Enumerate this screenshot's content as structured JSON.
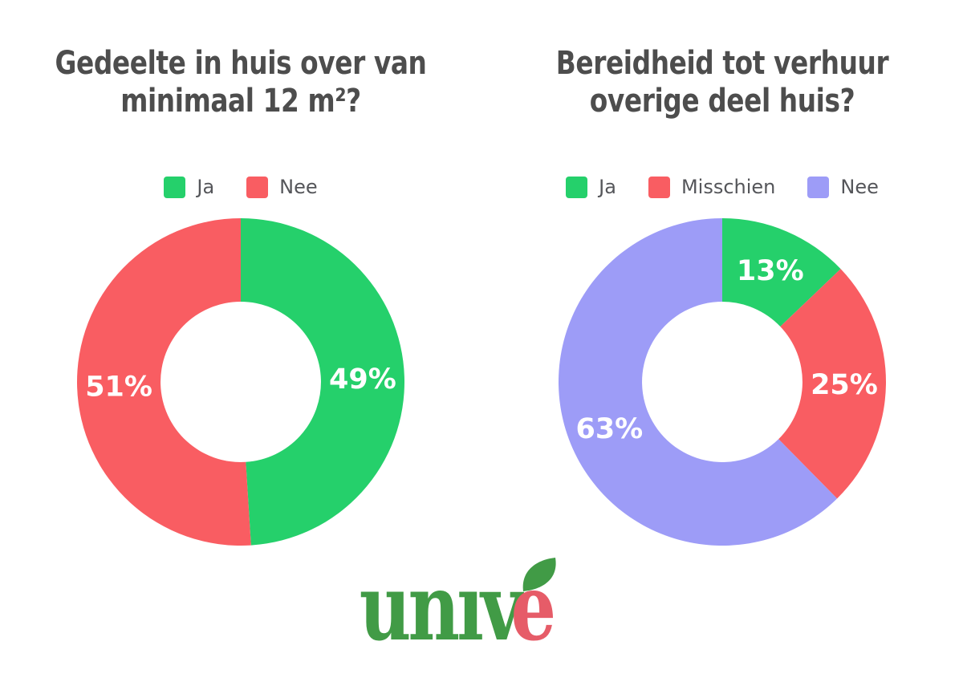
{
  "page": {
    "background": "#ffffff"
  },
  "styles": {
    "title_color": "#4d4d4d",
    "legend_text_color": "#55565a",
    "slice_label_color": "#ffffff"
  },
  "chart_data": [
    {
      "type": "pie",
      "donut": true,
      "title": "Gedeelte in huis over van minimaal 12 m²?",
      "title_lines": [
        "Gedeelte in huis over van",
        "minimaal 12 m²?"
      ],
      "labels": [
        "Ja",
        "Nee"
      ],
      "values": [
        49,
        51
      ],
      "data_labels": [
        "49%",
        "51%"
      ],
      "colors": [
        "#25d06b",
        "#f95d62"
      ],
      "start_angle_deg": 0,
      "direction": "clockwise",
      "legend_position": "top",
      "inner_radius_ratio": 0.49
    },
    {
      "type": "pie",
      "donut": true,
      "title": "Bereidheid tot verhuur overige deel huis?",
      "title_lines": [
        "Bereidheid tot verhuur",
        "overige deel huis?"
      ],
      "labels": [
        "Ja",
        "Misschien",
        "Nee"
      ],
      "values": [
        13,
        25,
        63
      ],
      "data_labels": [
        "13%",
        "25%",
        "63%"
      ],
      "colors": [
        "#25d06b",
        "#f95d62",
        "#9d9cf7"
      ],
      "start_angle_deg": 0,
      "direction": "clockwise",
      "legend_position": "top",
      "inner_radius_ratio": 0.49
    }
  ],
  "logo": {
    "brand": "univé",
    "green_part": "unıv",
    "red_part": "e",
    "green_color": "#419b46",
    "red_color": "#e65c68",
    "leaf_color": "#419b46"
  }
}
